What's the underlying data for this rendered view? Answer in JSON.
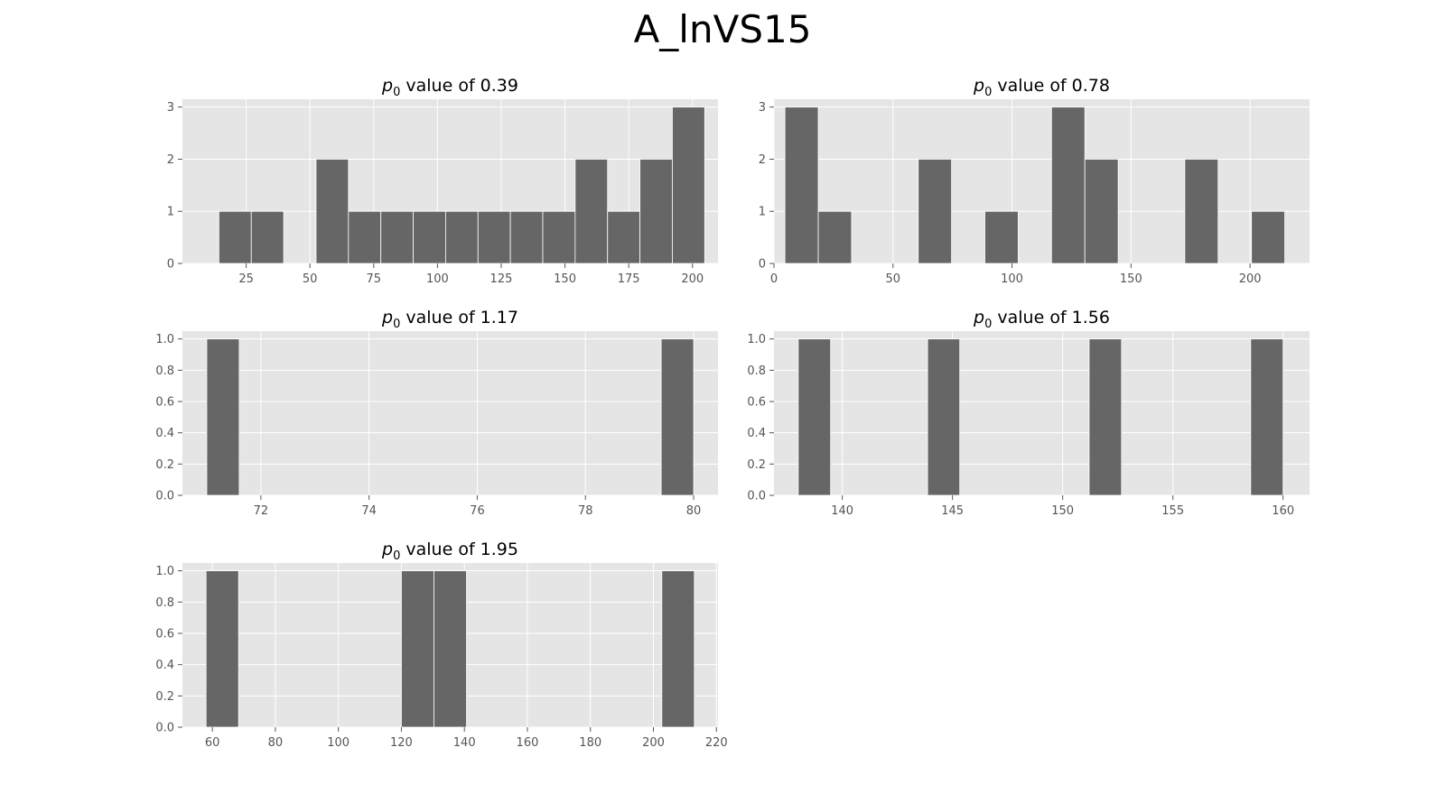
{
  "figure": {
    "title": "A_lnVS15"
  },
  "theme": {
    "panel_bg": "#E5E5E5",
    "grid": "#FFFFFF",
    "bar": "#666666",
    "bar_edge": "#FFFFFF",
    "tick_text": "#555555",
    "title_text": "#000000"
  },
  "chart_data": [
    {
      "type": "bar",
      "title": "$p_0$ value of 0.39",
      "title_parts": {
        "sym": "p",
        "sub": "0",
        "rest": " value of 0.39"
      },
      "xlim": [
        0,
        210
      ],
      "ylim": [
        0,
        3.15
      ],
      "xticks": [
        25,
        50,
        75,
        100,
        125,
        150,
        175,
        200
      ],
      "yticks": [
        0,
        1,
        2,
        3
      ],
      "bin_edges": [
        14.3,
        27.0,
        39.7,
        52.4,
        65.1,
        77.8,
        90.5,
        103.2,
        115.9,
        128.6,
        141.3,
        154.0,
        166.7,
        179.4,
        192.1,
        204.8
      ],
      "counts": [
        1,
        1,
        0,
        2,
        1,
        1,
        1,
        1,
        1,
        1,
        1,
        2,
        1,
        2,
        3
      ]
    },
    {
      "type": "bar",
      "title": "$p_0$ value of 0.78",
      "title_parts": {
        "sym": "p",
        "sub": "0",
        "rest": " value of 0.78"
      },
      "xlim": [
        0,
        225
      ],
      "ylim": [
        0,
        3.15
      ],
      "xticks": [
        0,
        50,
        100,
        150,
        200
      ],
      "yticks": [
        0,
        1,
        2,
        3
      ],
      "bin_edges": [
        4.6,
        18.6,
        32.6,
        46.6,
        60.6,
        74.6,
        88.6,
        102.6,
        116.6,
        130.6,
        144.6,
        158.6,
        172.6,
        186.6,
        200.6,
        214.6
      ],
      "counts": [
        3,
        1,
        0,
        0,
        2,
        0,
        1,
        0,
        3,
        2,
        0,
        0,
        2,
        0,
        1
      ]
    },
    {
      "type": "bar",
      "title": "$p_0$ value of 1.17",
      "title_parts": {
        "sym": "p",
        "sub": "0",
        "rest": " value of 1.17"
      },
      "xlim": [
        70.55,
        80.45
      ],
      "ylim": [
        0,
        1.05
      ],
      "xticks": [
        72,
        74,
        76,
        78,
        80
      ],
      "yticks": [
        0.0,
        0.2,
        0.4,
        0.6,
        0.8,
        1.0
      ],
      "bin_edges": [
        71.0,
        71.6,
        72.2,
        72.8,
        73.4,
        74.0,
        74.6,
        75.2,
        75.8,
        76.4,
        77.0,
        77.6,
        78.2,
        78.8,
        79.4,
        80.0
      ],
      "counts": [
        1,
        0,
        0,
        0,
        0,
        0,
        0,
        0,
        0,
        0,
        0,
        0,
        0,
        0,
        1
      ]
    },
    {
      "type": "bar",
      "title": "$p_0$ value of 1.56",
      "title_parts": {
        "sym": "p",
        "sub": "0",
        "rest": " value of 1.56"
      },
      "xlim": [
        136.9,
        161.2
      ],
      "ylim": [
        0,
        1.05
      ],
      "xticks": [
        140,
        145,
        150,
        155,
        160
      ],
      "yticks": [
        0.0,
        0.2,
        0.4,
        0.6,
        0.8,
        1.0
      ],
      "bin_edges": [
        138.0,
        139.47,
        140.93,
        142.4,
        143.87,
        145.33,
        146.8,
        148.27,
        149.73,
        151.2,
        152.67,
        154.13,
        155.6,
        157.07,
        158.53,
        160.0
      ],
      "counts": [
        1,
        0,
        0,
        0,
        1,
        0,
        0,
        0,
        0,
        1,
        0,
        0,
        0,
        0,
        1
      ]
    },
    {
      "type": "bar",
      "title": "$p_0$ value of 1.95",
      "title_parts": {
        "sym": "p",
        "sub": "0",
        "rest": " value of 1.95"
      },
      "xlim": [
        50.5,
        220.5
      ],
      "ylim": [
        0,
        1.05
      ],
      "xticks": [
        60,
        80,
        100,
        120,
        140,
        160,
        180,
        200,
        220
      ],
      "yticks": [
        0.0,
        0.2,
        0.4,
        0.6,
        0.8,
        1.0
      ],
      "bin_edges": [
        58.0,
        68.33,
        78.67,
        89.0,
        99.33,
        109.67,
        120.0,
        130.33,
        140.67,
        151.0,
        161.33,
        171.67,
        182.0,
        192.33,
        202.67,
        213.0
      ],
      "counts": [
        1,
        0,
        0,
        0,
        0,
        0,
        1,
        1,
        0,
        0,
        0,
        0,
        0,
        0,
        1
      ]
    }
  ]
}
